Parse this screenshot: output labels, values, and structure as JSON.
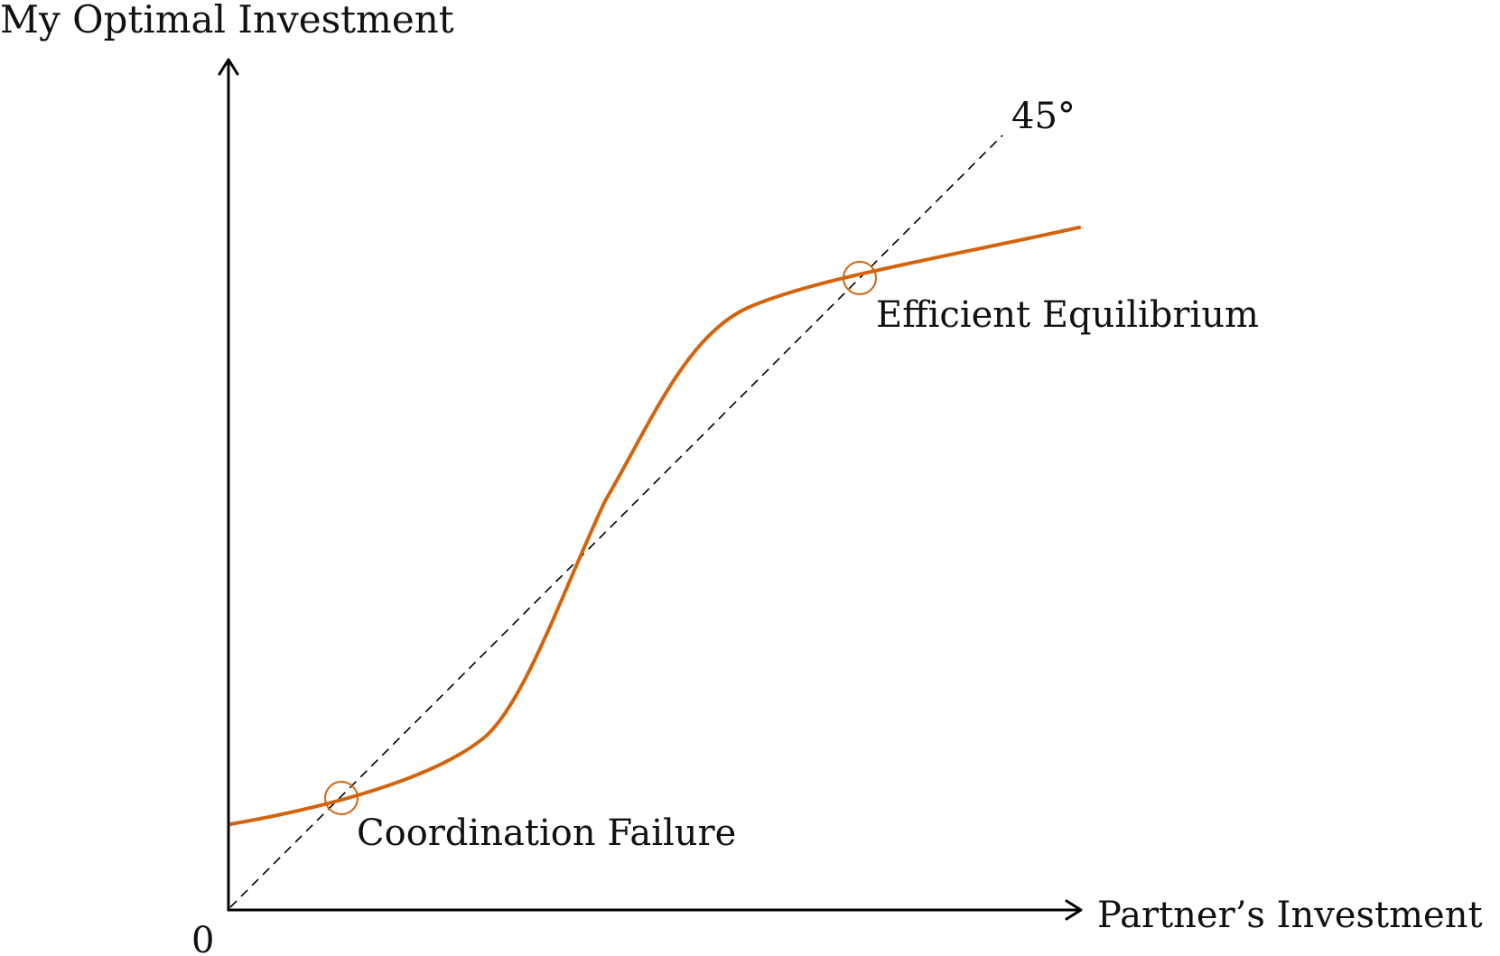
{
  "labels": {
    "y_axis": "My Optimal Investment",
    "x_axis": "Partner’s Investment",
    "origin": "0",
    "diagonal": "45°",
    "equilibrium_high": "Efficient Equilibrium",
    "equilibrium_low": "Coordination Failure"
  },
  "colors": {
    "curve": "#d3640d",
    "axis": "#000000",
    "diagonal": "#000000",
    "marker": "#d3640d"
  },
  "styles": {
    "diagonal_dashed": true
  }
}
